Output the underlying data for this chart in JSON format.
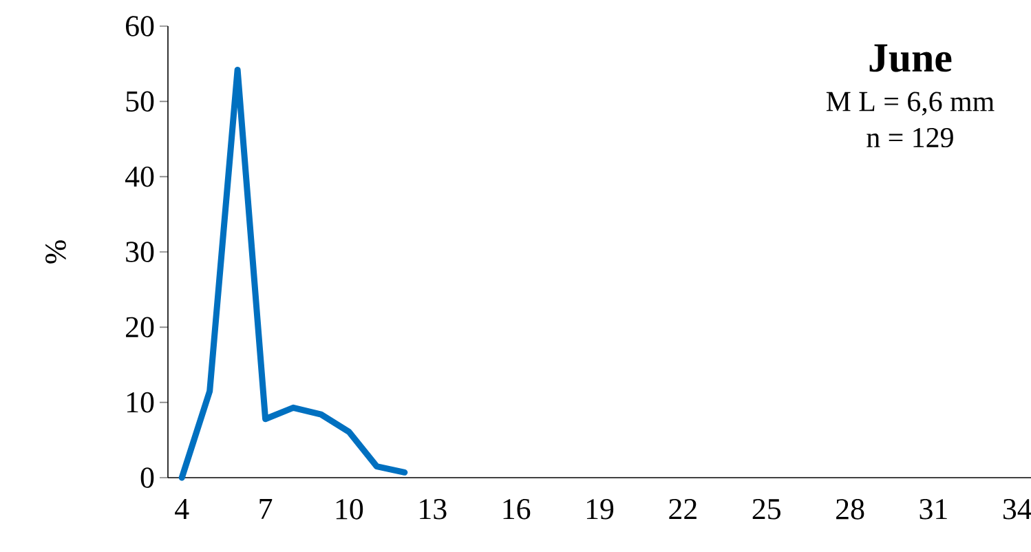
{
  "chart_data": {
    "type": "line",
    "title": "June",
    "annotations": [
      "M L = 6,6 mm",
      "n = 129"
    ],
    "ylabel": "%",
    "categories": [
      "4",
      null,
      null,
      "7",
      null,
      null,
      "10",
      null,
      null,
      "13",
      null,
      null,
      "16",
      null,
      null,
      "19",
      null,
      null,
      "22",
      null,
      null,
      "25",
      null,
      null,
      "28",
      null,
      null,
      "31",
      null,
      null,
      "34"
    ],
    "series": [
      {
        "color": "#0070c0",
        "values": [
          0,
          11.5,
          54.2,
          7.8,
          9.3,
          8.4,
          6.1,
          1.5,
          0.7,
          null,
          null,
          null,
          null,
          null,
          null,
          null,
          null,
          null,
          null,
          null,
          null,
          null,
          null,
          null,
          null,
          null,
          null,
          null,
          null,
          null,
          null
        ]
      }
    ],
    "ylim": [
      0,
      60
    ],
    "yticks": [
      0,
      10,
      20,
      30,
      40,
      50,
      60
    ],
    "grid": false,
    "marker": "none",
    "line_style": "solid"
  }
}
